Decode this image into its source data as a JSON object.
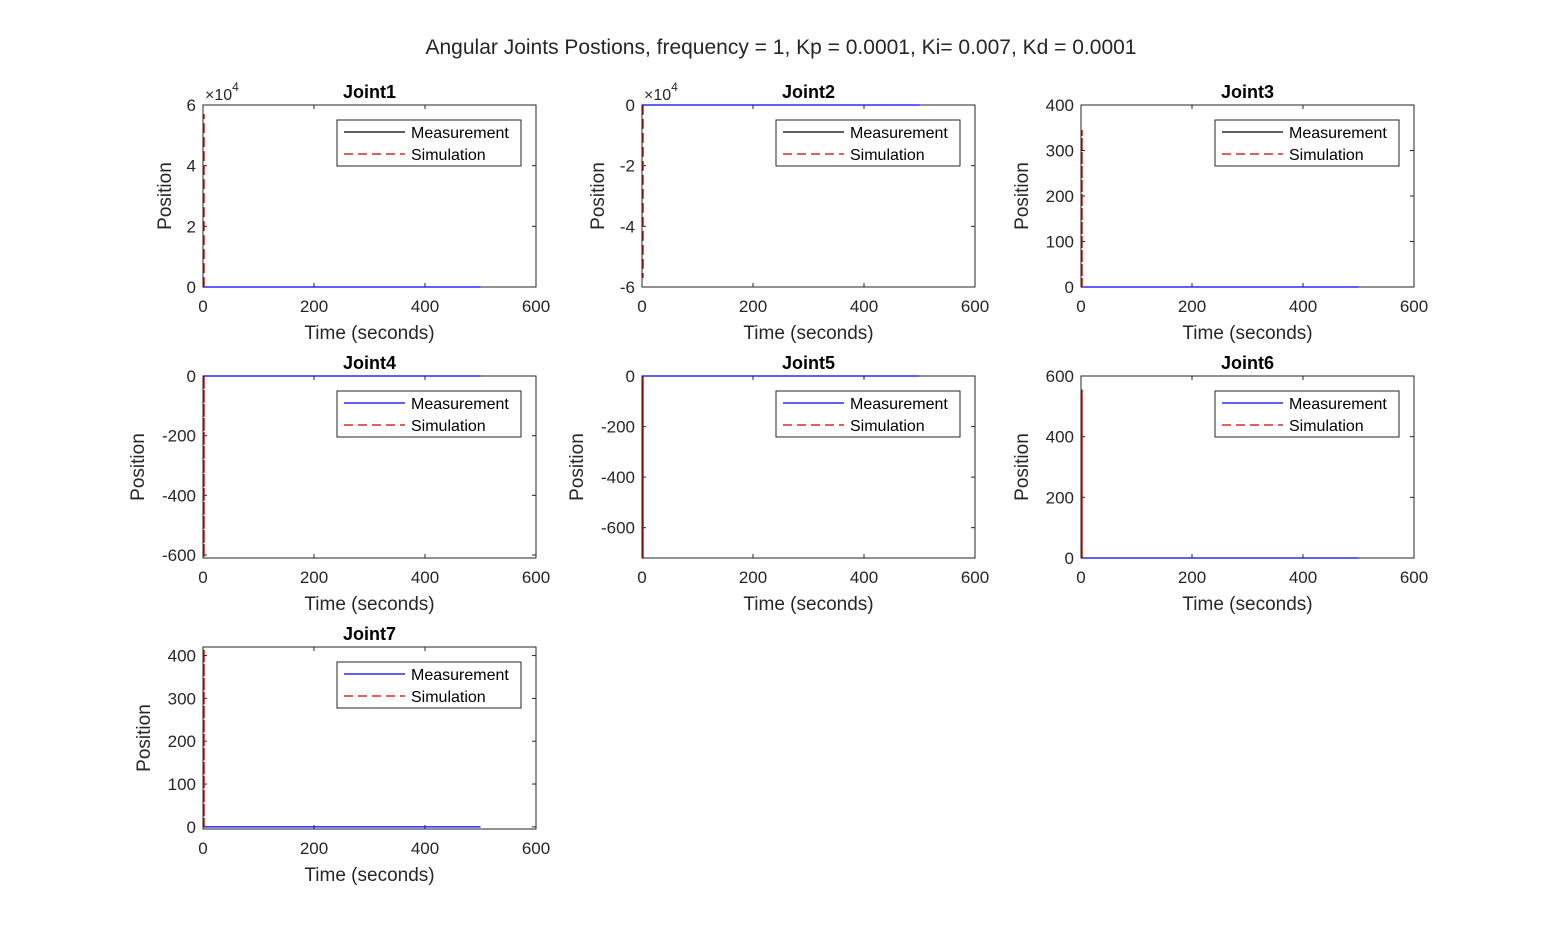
{
  "figure": {
    "title": "Angular Joints Postions, frequency = 1, Kp = 0.0001, Ki= 0.007, Kd = 0.0001"
  },
  "colors": {
    "measurement": "#0000ff",
    "simulation": "#d00000",
    "axes": "#262626",
    "background": "#ffffff"
  },
  "chart_data": [
    {
      "type": "line",
      "title": "Joint1",
      "xlabel": "Time (seconds)",
      "ylabel": "Position",
      "xlim": [
        0,
        600
      ],
      "ylim": [
        0,
        60000
      ],
      "xticks": [
        0,
        200,
        400,
        600
      ],
      "yticks": [
        0,
        2,
        4,
        6
      ],
      "yticklabels": [
        "0",
        "2",
        "4",
        "6"
      ],
      "exponent_label": "×10",
      "exponent_power": "4",
      "legend": {
        "entries": [
          "Measurement",
          "Simulation"
        ],
        "location": "top-right"
      },
      "measurement_color": "#000000",
      "series": [
        {
          "name": "Measurement",
          "style": "solid",
          "x": [
            0,
            500
          ],
          "y": [
            0,
            0
          ]
        },
        {
          "name": "Simulation",
          "style": "dashed",
          "x": [
            2,
            2,
            2
          ],
          "y": [
            0,
            57000,
            0
          ]
        }
      ]
    },
    {
      "type": "line",
      "title": "Joint2",
      "xlabel": "Time (seconds)",
      "ylabel": "Position",
      "xlim": [
        0,
        600
      ],
      "ylim": [
        -60000,
        0
      ],
      "xticks": [
        0,
        200,
        400,
        600
      ],
      "yticks": [
        -6,
        -4,
        -2,
        0
      ],
      "yticklabels": [
        "-6",
        "-4",
        "-2",
        "0"
      ],
      "exponent_label": "×10",
      "exponent_power": "4",
      "legend": {
        "entries": [
          "Measurement",
          "Simulation"
        ],
        "location": "top-right"
      },
      "measurement_color": "#000000",
      "series": [
        {
          "name": "Measurement",
          "style": "solid",
          "x": [
            0,
            500
          ],
          "y": [
            0,
            0
          ]
        },
        {
          "name": "Simulation",
          "style": "dashed",
          "x": [
            2,
            2,
            2
          ],
          "y": [
            0,
            -57000,
            0
          ]
        }
      ]
    },
    {
      "type": "line",
      "title": "Joint3",
      "xlabel": "Time (seconds)",
      "ylabel": "Position",
      "xlim": [
        0,
        600
      ],
      "ylim": [
        0,
        400
      ],
      "xticks": [
        0,
        200,
        400,
        600
      ],
      "yticks": [
        0,
        100,
        200,
        300,
        400
      ],
      "yticklabels": [
        "0",
        "100",
        "200",
        "300",
        "400"
      ],
      "legend": {
        "entries": [
          "Measurement",
          "Simulation"
        ],
        "location": "top-right"
      },
      "measurement_color": "#000000",
      "series": [
        {
          "name": "Measurement",
          "style": "solid",
          "x": [
            0,
            500
          ],
          "y": [
            0,
            0
          ]
        },
        {
          "name": "Simulation",
          "style": "dashed",
          "x": [
            2,
            2,
            2
          ],
          "y": [
            0,
            345,
            0
          ]
        }
      ]
    },
    {
      "type": "line",
      "title": "Joint4",
      "xlabel": "Time (seconds)",
      "ylabel": "Position",
      "xlim": [
        0,
        600
      ],
      "ylim": [
        -610,
        0
      ],
      "xticks": [
        0,
        200,
        400,
        600
      ],
      "yticks": [
        -600,
        -400,
        -200,
        0
      ],
      "yticklabels": [
        "-600",
        "-400",
        "-200",
        "0"
      ],
      "legend": {
        "entries": [
          "Measurement",
          "Simulation"
        ],
        "location": "top-right"
      },
      "measurement_color": "#0000ff",
      "series": [
        {
          "name": "Measurement",
          "style": "solid",
          "x": [
            0,
            500
          ],
          "y": [
            0,
            0
          ]
        },
        {
          "name": "Simulation",
          "style": "dashed",
          "x": [
            2,
            2,
            2
          ],
          "y": [
            0,
            -608,
            0
          ]
        }
      ]
    },
    {
      "type": "line",
      "title": "Joint5",
      "xlabel": "Time (seconds)",
      "ylabel": "Position",
      "xlim": [
        0,
        600
      ],
      "ylim": [
        -720,
        0
      ],
      "xticks": [
        0,
        200,
        400,
        600
      ],
      "yticks": [
        -600,
        -400,
        -200,
        0
      ],
      "yticklabels": [
        "-600",
        "-400",
        "-200",
        "0"
      ],
      "legend": {
        "entries": [
          "Measurement",
          "Simulation"
        ],
        "location": "top-right"
      },
      "measurement_color": "#0000ff",
      "series": [
        {
          "name": "Measurement",
          "style": "solid",
          "x": [
            0,
            500
          ],
          "y": [
            0,
            0
          ]
        },
        {
          "name": "Simulation",
          "style": "dashed",
          "x": [
            2,
            2,
            2
          ],
          "y": [
            0,
            -720,
            0
          ]
        }
      ]
    },
    {
      "type": "line",
      "title": "Joint6",
      "xlabel": "Time (seconds)",
      "ylabel": "Position",
      "xlim": [
        0,
        600
      ],
      "ylim": [
        0,
        600
      ],
      "xticks": [
        0,
        200,
        400,
        600
      ],
      "yticks": [
        0,
        200,
        400,
        600
      ],
      "yticklabels": [
        "0",
        "200",
        "400",
        "600"
      ],
      "legend": {
        "entries": [
          "Measurement",
          "Simulation"
        ],
        "location": "top-right"
      },
      "measurement_color": "#0000ff",
      "series": [
        {
          "name": "Measurement",
          "style": "solid",
          "x": [
            0,
            500
          ],
          "y": [
            0,
            0
          ]
        },
        {
          "name": "Simulation",
          "style": "dashed",
          "x": [
            2,
            2,
            2
          ],
          "y": [
            0,
            555,
            0
          ]
        }
      ]
    },
    {
      "type": "line",
      "title": "Joint7",
      "xlabel": "Time (seconds)",
      "ylabel": "Position",
      "xlim": [
        0,
        600
      ],
      "ylim": [
        -5,
        420
      ],
      "xticks": [
        0,
        200,
        400,
        600
      ],
      "yticks": [
        0,
        100,
        200,
        300,
        400
      ],
      "yticklabels": [
        "0",
        "100",
        "200",
        "300",
        "400"
      ],
      "legend": {
        "entries": [
          "Measurement",
          "Simulation"
        ],
        "location": "top-right"
      },
      "measurement_color": "#0000ff",
      "series": [
        {
          "name": "Measurement",
          "style": "solid",
          "x": [
            0,
            500
          ],
          "y": [
            0,
            0
          ]
        },
        {
          "name": "Simulation",
          "style": "dashed",
          "x": [
            2,
            2,
            2
          ],
          "y": [
            0,
            415,
            0
          ]
        }
      ]
    }
  ]
}
